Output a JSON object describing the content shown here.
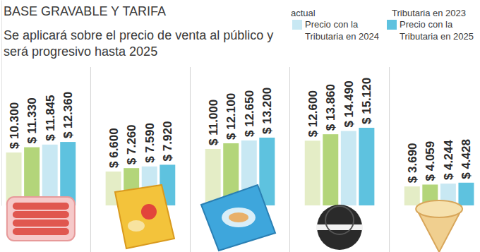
{
  "chart_data": {
    "type": "bar",
    "title": "BASE GRAVABLE Y TARIFA",
    "subtitle": "Se aplicará sobre el precio de venta al público y será progresivo hasta 2025",
    "categories": [
      null,
      null,
      null,
      null,
      null
    ],
    "series": [
      {
        "name": "actual",
        "color": "#e4edc6",
        "values": [
          10300,
          6600,
          11000,
          12600,
          3690
        ],
        "value_labels": [
          "$ 10.300",
          "$ 6.600",
          "$ 11.000",
          "$ 12.600",
          "$ 3.690"
        ]
      },
      {
        "name": "Tributaria en 2023",
        "color": "#b3d57a",
        "values": [
          11330,
          7260,
          12100,
          13860,
          4059
        ],
        "value_labels": [
          "$ 11.330",
          "$ 7.260",
          "$ 12.100",
          "$ 13.860",
          "$ 4.059"
        ]
      },
      {
        "name": "Precio con la Tributaria en 2024",
        "color": "#c8e8f3",
        "values": [
          11845,
          7590,
          12650,
          14490,
          4244
        ],
        "value_labels": [
          "$ 11.845",
          "$ 7.590",
          "$ 12.650",
          "$ 14.490",
          "$ 4.244"
        ]
      },
      {
        "name": "Precio con la Tributaria en 2025",
        "color": "#5ec2df",
        "values": [
          12360,
          7920,
          13200,
          15120,
          4428
        ],
        "value_labels": [
          "$ 12.360",
          "$ 7.920",
          "$ 13.200",
          "$ 15.120",
          "$ 4.428"
        ]
      }
    ],
    "ylim": [
      0,
      40000
    ],
    "data_labels": true,
    "tick_labels": false,
    "legend": "top-right"
  }
}
